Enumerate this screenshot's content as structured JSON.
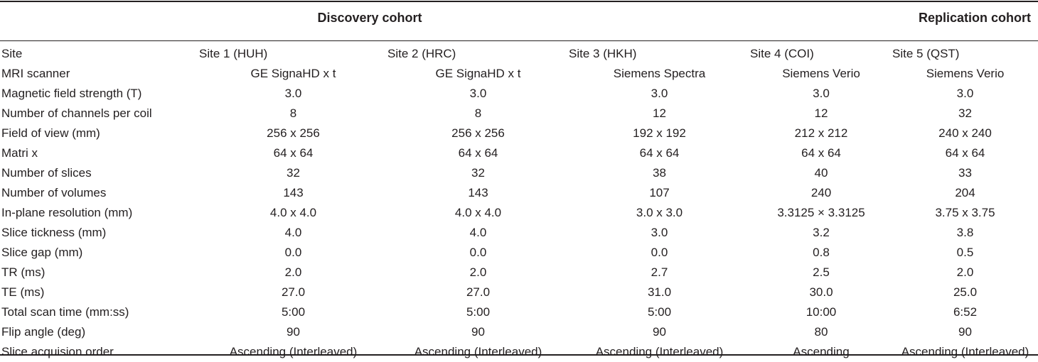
{
  "groups": {
    "discovery": "Discovery cohort",
    "replication": "Replication cohort"
  },
  "rows": [
    {
      "label": "Site",
      "values": [
        "Site 1 (HUH)",
        "Site 2 (HRC)",
        "Site 3 (HKH)",
        "Site 4 (COI)",
        "Site 5 (QST)"
      ]
    },
    {
      "label": "MRI scanner",
      "values": [
        "GE SignaHD x t",
        "GE SignaHD x t",
        "Siemens Spectra",
        "Siemens Verio",
        "Siemens Verio"
      ]
    },
    {
      "label": "Magnetic field strength (T)",
      "values": [
        "3.0",
        "3.0",
        "3.0",
        "3.0",
        "3.0"
      ]
    },
    {
      "label": "Number of channels per coil",
      "values": [
        "8",
        "8",
        "12",
        "12",
        "32"
      ]
    },
    {
      "label": "Field of view (mm)",
      "values": [
        "256 x 256",
        "256 x 256",
        "192 x 192",
        "212 x 212",
        "240 x 240"
      ]
    },
    {
      "label": "Matri x",
      "values": [
        "64 x 64",
        "64 x 64",
        "64 x 64",
        "64 x 64",
        "64 x 64"
      ]
    },
    {
      "label": "Number of slices",
      "values": [
        "32",
        "32",
        "38",
        "40",
        "33"
      ]
    },
    {
      "label": "Number of volumes",
      "values": [
        "143",
        "143",
        "107",
        "240",
        "204"
      ]
    },
    {
      "label": "In-plane resolution (mm)",
      "values": [
        "4.0 x 4.0",
        "4.0 x 4.0",
        "3.0 x 3.0",
        "3.3125 × 3.3125",
        "3.75 x 3.75"
      ]
    },
    {
      "label": "Slice tickness (mm)",
      "values": [
        "4.0",
        "4.0",
        "3.0",
        "3.2",
        "3.8"
      ]
    },
    {
      "label": "Slice gap (mm)",
      "values": [
        "0.0",
        "0.0",
        "0.0",
        "0.8",
        "0.5"
      ]
    },
    {
      "label": "TR (ms)",
      "values": [
        "2.0",
        "2.0",
        "2.7",
        "2.5",
        "2.0"
      ]
    },
    {
      "label": "TE (ms)",
      "values": [
        "27.0",
        "27.0",
        "31.0",
        "30.0",
        "25.0"
      ]
    },
    {
      "label": "Total scan time (mm:ss)",
      "values": [
        "5:00",
        "5:00",
        "5:00",
        "10:00",
        "6:52"
      ]
    },
    {
      "label": "Flip angle (deg)",
      "values": [
        "90",
        "90",
        "90",
        "80",
        "90"
      ]
    },
    {
      "label": "Slice acquision order",
      "values": [
        "Ascending (Interleaved)",
        "Ascending (Interleaved)",
        "Ascending (Interleaved)",
        "Ascending",
        "Ascending (Interleaved)"
      ]
    }
  ]
}
